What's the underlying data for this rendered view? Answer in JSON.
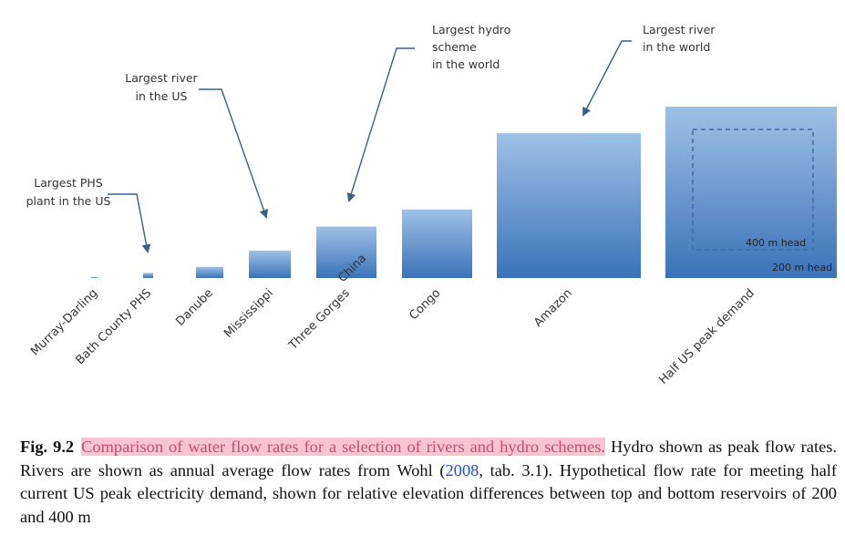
{
  "chart_data": {
    "type": "bar",
    "categories": [
      "Murray-Darling",
      "Bath County PHS",
      "Danube",
      "Mississippi",
      "Three Gorges China",
      "Congo",
      "Amazon",
      "Half US peak demand"
    ],
    "values": [
      0.6,
      3,
      6.5,
      16,
      30,
      40,
      84.5,
      100
    ],
    "inner_values": {
      "Half US peak demand": 49
    },
    "bar_labels": {
      "200 m head": "200 m head",
      "400 m head": "400 m head"
    },
    "annotations": [
      {
        "target": "Bath County PHS",
        "text": [
          "Largest PHS",
          "plant in the US"
        ]
      },
      {
        "target": "Mississippi",
        "text": [
          "Largest river",
          "in the US"
        ]
      },
      {
        "target": "Three Gorges China",
        "text": [
          "Largest hydro",
          "scheme",
          "in the world"
        ]
      },
      {
        "target": "Amazon",
        "text": [
          "Largest river",
          "in the world"
        ]
      }
    ],
    "colors": {
      "bar_top": "#9ec1e6",
      "bar_bottom": "#3a73b8",
      "arrow": "#3a5f8a"
    }
  },
  "caption": {
    "fig_label": "Fig. 9.2",
    "highlighted": "Comparison of water flow rates for a selection of rivers and hydro schemes.",
    "text_1": " Hydro shown as peak flow rates. Rivers are shown as annual average flow rates from Wohl (",
    "ref_year": "2008",
    "text_2": ", tab. 3.1). Hypothetical flow rate for meeting half current US peak electricity demand, shown for relative elevation differences between top and bottom reservoirs of 200 and 400 m"
  }
}
